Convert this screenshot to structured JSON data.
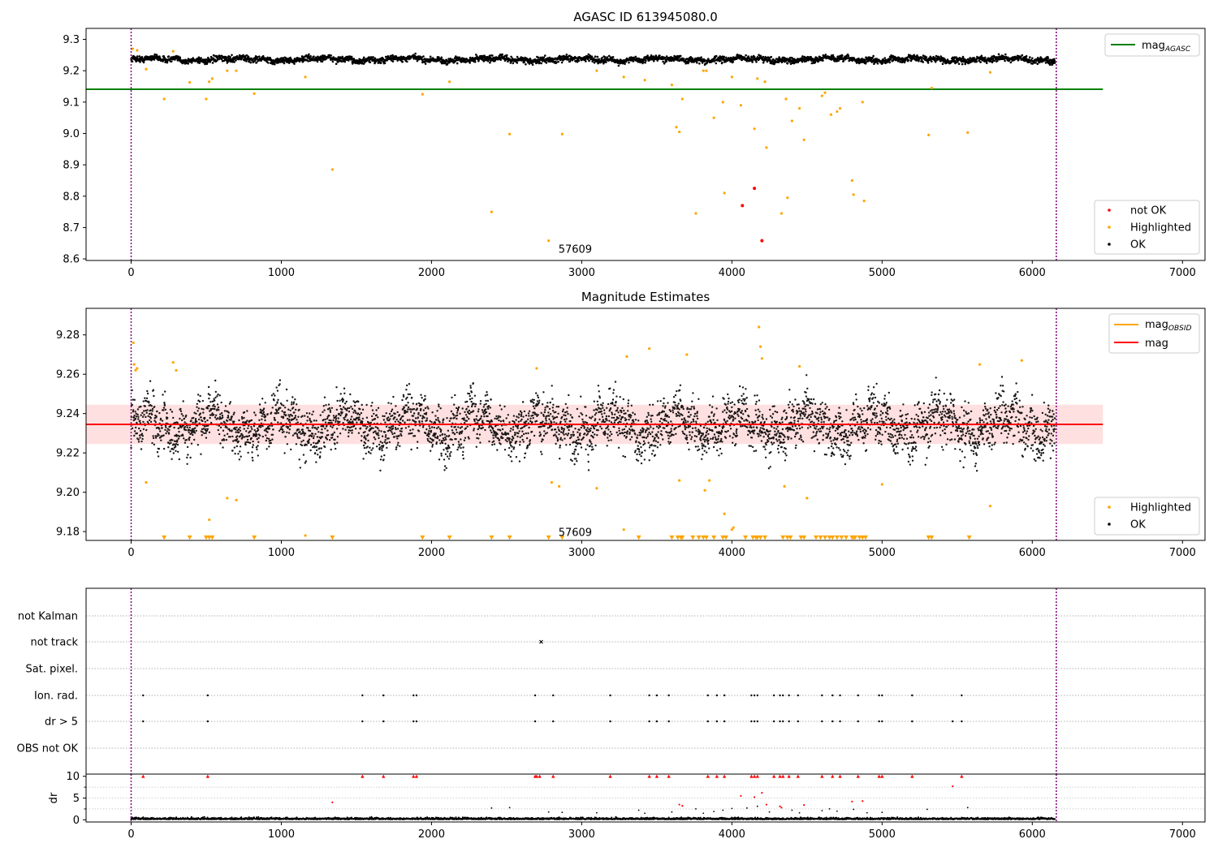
{
  "chart_data": [
    {
      "type": "scatter",
      "title": "AGASC ID 613945080.0",
      "xlim": [
        -300,
        7150
      ],
      "ylim": [
        8.595,
        9.335
      ],
      "x_ticks": [
        0,
        1000,
        2000,
        3000,
        4000,
        5000,
        6000,
        7000
      ],
      "y_ticks": [
        8.6,
        8.7,
        8.8,
        8.9,
        9.0,
        9.1,
        9.2,
        9.3
      ],
      "y_tick_labels": [
        "8.6",
        "8.7",
        "8.8",
        "8.9",
        "9.0",
        "9.1",
        "9.2",
        "9.3"
      ],
      "vlines": [
        0,
        6160
      ],
      "hlines": [
        {
          "name": "mag",
          "subscript": "AGASC",
          "y": 9.141,
          "x_range": [
            -300,
            6470
          ],
          "color": "#008000"
        }
      ],
      "annotation": {
        "text": "57609",
        "x": 3000,
        "y": 8.63
      },
      "legend_upper": {
        "position": "upper-right",
        "entries": [
          {
            "label": "mag",
            "subscript": "AGASC",
            "color": "#008000"
          }
        ]
      },
      "legend_lower": {
        "position": "lower-right",
        "entries": [
          {
            "label": "not OK",
            "color": "#ff0000"
          },
          {
            "label": "Highlighted",
            "color": "#ffa500"
          },
          {
            "label": "OK",
            "color": "#000000"
          }
        ]
      },
      "series": [
        {
          "name": "OK",
          "color": "#000000",
          "band": {
            "x": [
              0,
              6150
            ],
            "y_center": 9.236,
            "amplitude": 0.012
          }
        },
        {
          "name": "Highlighted",
          "color": "#ffa500",
          "x": [
            10,
            40,
            100,
            220,
            280,
            390,
            500,
            520,
            540,
            640,
            700,
            820,
            1160,
            1340,
            1940,
            2120,
            2400,
            2520,
            2780,
            2870,
            3100,
            3280,
            3420,
            3600,
            3630,
            3650,
            3670,
            3760,
            3810,
            3830,
            3880,
            3940,
            3950,
            4000,
            4060,
            4150,
            4170,
            4220,
            4230,
            4330,
            4360,
            4370,
            4400,
            4450,
            4480,
            4600,
            4620,
            4660,
            4700,
            4720,
            4800,
            4810,
            4870,
            4880,
            5310,
            5330,
            5570,
            5720
          ],
          "y": [
            9.27,
            9.265,
            9.205,
            9.11,
            9.262,
            9.163,
            9.11,
            9.165,
            9.175,
            9.2,
            9.2,
            9.127,
            9.18,
            8.885,
            9.125,
            9.165,
            8.75,
            8.998,
            8.658,
            8.998,
            9.2,
            9.18,
            9.17,
            9.155,
            9.02,
            9.005,
            9.11,
            8.745,
            9.2,
            9.2,
            9.05,
            9.1,
            8.81,
            9.18,
            9.09,
            9.015,
            9.175,
            9.165,
            8.955,
            8.745,
            9.11,
            8.795,
            9.04,
            9.08,
            8.98,
            9.12,
            9.13,
            9.06,
            9.07,
            9.08,
            8.85,
            8.805,
            9.1,
            8.785,
            8.995,
            9.145,
            9.003,
            9.195
          ]
        },
        {
          "name": "not OK",
          "color": "#ff0000",
          "x": [
            4070,
            4150,
            4200
          ],
          "y": [
            8.77,
            8.825,
            8.658
          ]
        }
      ]
    },
    {
      "type": "scatter",
      "title": "Magnitude Estimates",
      "xlim": [
        -300,
        7150
      ],
      "ylim": [
        9.1755,
        9.2935
      ],
      "x_ticks": [
        0,
        1000,
        2000,
        3000,
        4000,
        5000,
        6000,
        7000
      ],
      "y_ticks": [
        9.18,
        9.2,
        9.22,
        9.24,
        9.26,
        9.28
      ],
      "y_tick_labels": [
        "9.18",
        "9.20",
        "9.22",
        "9.24",
        "9.26",
        "9.28"
      ],
      "vlines": [
        0,
        6160
      ],
      "hlines": [
        {
          "name": "mag",
          "y": 9.2345,
          "x_range": [
            -300,
            6470
          ],
          "color": "#ff0000"
        }
      ],
      "shaded_band": {
        "y_range": [
          9.2245,
          9.2445
        ],
        "x_range": [
          -300,
          6470
        ],
        "color": "#ffe0e0"
      },
      "annotation": {
        "text": "57609",
        "x": 3000,
        "y": 9.1795
      },
      "legend_upper": {
        "position": "upper-right",
        "entries": [
          {
            "label": "mag",
            "subscript": "OBSID",
            "color": "#ffa500"
          },
          {
            "label": "mag",
            "color": "#ff0000"
          }
        ]
      },
      "legend_lower": {
        "position": "lower-right",
        "entries": [
          {
            "label": "Highlighted",
            "color": "#ffa500"
          },
          {
            "label": "OK",
            "color": "#000000"
          }
        ]
      },
      "series": [
        {
          "name": "OK",
          "color": "#000000",
          "band": {
            "x": [
              0,
              6150
            ],
            "y_center": 9.234,
            "amplitude": 0.012
          }
        },
        {
          "name": "Highlighted",
          "color": "#ffa500",
          "x": [
            15,
            20,
            30,
            40,
            100,
            280,
            300,
            520,
            640,
            700,
            1160,
            2700,
            2800,
            2850,
            3100,
            3280,
            3300,
            3450,
            3650,
            3700,
            3820,
            3850,
            3950,
            4000,
            4010,
            4180,
            4190,
            4200,
            4350,
            4450,
            4500,
            5000,
            5650,
            5720,
            5930
          ],
          "y": [
            9.276,
            9.265,
            9.262,
            9.263,
            9.205,
            9.266,
            9.262,
            9.186,
            9.197,
            9.196,
            9.178,
            9.263,
            9.205,
            9.203,
            9.202,
            9.181,
            9.269,
            9.273,
            9.206,
            9.27,
            9.201,
            9.206,
            9.189,
            9.181,
            9.182,
            9.284,
            9.274,
            9.268,
            9.203,
            9.264,
            9.197,
            9.204,
            9.265,
            9.193,
            9.267
          ]
        },
        {
          "name": "Highlighted (below range)",
          "color": "#ffa500",
          "marker": "triangle-down",
          "y": 9.1768,
          "x": [
            220,
            390,
            500,
            520,
            540,
            820,
            1340,
            1940,
            2120,
            2400,
            2520,
            2780,
            2870,
            3380,
            3600,
            3640,
            3660,
            3670,
            3740,
            3780,
            3810,
            3830,
            3880,
            3940,
            3960,
            4090,
            4140,
            4160,
            4170,
            4190,
            4220,
            4340,
            4370,
            4390,
            4460,
            4480,
            4560,
            4590,
            4620,
            4650,
            4670,
            4700,
            4730,
            4760,
            4800,
            4810,
            4820,
            4850,
            4870,
            4890,
            5310,
            5330,
            5580
          ]
        }
      ]
    },
    {
      "type": "scatter",
      "title": "",
      "xlim": [
        -300,
        7150
      ],
      "x_ticks": [
        0,
        1000,
        2000,
        3000,
        4000,
        5000,
        6000,
        7000
      ],
      "vlines": [
        0,
        6160
      ],
      "flag_rows": [
        "not Kalman",
        "not track",
        "Sat. pixel.",
        "Ion. rad.",
        "dr > 5",
        "OBS not OK"
      ],
      "flag_points": {
        "not track": [
          2730
        ],
        "Ion. rad.": [
          80,
          510,
          1540,
          1680,
          1880,
          1900,
          2690,
          2810,
          3190,
          3450,
          3500,
          3580,
          3840,
          3900,
          3950,
          4130,
          4150,
          4170,
          4280,
          4320,
          4340,
          4380,
          4440,
          4600,
          4670,
          4720,
          4840,
          4980,
          5000,
          5200,
          5530
        ],
        "dr > 5": [
          80,
          510,
          1540,
          1680,
          1880,
          1900,
          2690,
          2810,
          3190,
          3450,
          3500,
          3580,
          3840,
          3900,
          3950,
          4130,
          4150,
          4170,
          4280,
          4320,
          4340,
          4380,
          4440,
          4600,
          4670,
          4720,
          4840,
          4980,
          5000,
          5200,
          5470,
          5530
        ]
      },
      "dr_panel": {
        "ylabel": "dr",
        "ylim": [
          -0.5,
          10.5
        ],
        "y_ticks": [
          0,
          5,
          10
        ],
        "y_tick_labels": [
          "0",
          "5",
          "10"
        ],
        "baseline_series": {
          "color": "#000000",
          "x": [
            0,
            6150
          ],
          "y_center": 0.3
        },
        "clipped_points": {
          "color": "#ff0000",
          "marker": "triangle-up",
          "y": 10,
          "x": [
            80,
            510,
            1540,
            1680,
            1880,
            1900,
            2690,
            2700,
            2720,
            2810,
            3190,
            3450,
            3500,
            3580,
            3840,
            3900,
            3950,
            4130,
            4150,
            4170,
            4280,
            4320,
            4340,
            4380,
            4440,
            4600,
            4670,
            4720,
            4840,
            4980,
            5000,
            5200,
            5530
          ]
        },
        "red_points": {
          "color": "#ff0000",
          "x": [
            1340,
            3650,
            3670,
            4060,
            4150,
            4200,
            4230,
            4320,
            4330,
            4480,
            4800,
            4870,
            5470
          ],
          "y": [
            4,
            3.5,
            3.2,
            5.5,
            5.2,
            6.2,
            3.5,
            3.1,
            2.8,
            3.4,
            4.2,
            4.3,
            7.7
          ]
        },
        "black_points": {
          "color": "#000000",
          "x": [
            2400,
            2520,
            2780,
            2870,
            3100,
            3380,
            3420,
            3600,
            3760,
            3810,
            3880,
            3940,
            4000,
            4100,
            4170,
            4250,
            4400,
            4450,
            4600,
            4650,
            4700,
            4810,
            4900,
            5000,
            5300,
            5570
          ],
          "y": [
            2.7,
            2.8,
            1.8,
            1.7,
            1.6,
            2.2,
            1.5,
            1.8,
            2.5,
            1.5,
            1.9,
            2.2,
            2.6,
            2.7,
            3.1,
            1.8,
            2.2,
            1.6,
            2.1,
            2.5,
            2.0,
            2.4,
            1.6,
            1.7,
            2.4,
            2.8
          ]
        }
      }
    }
  ]
}
